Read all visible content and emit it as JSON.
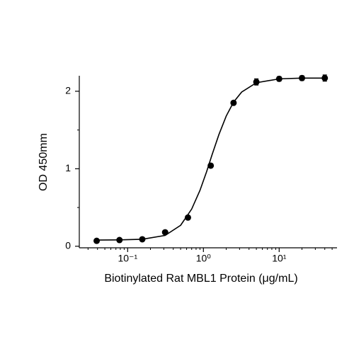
{
  "chart_data": {
    "type": "scatter",
    "xlabel": "Biotinylated Rat MBL1 Protein (μg/mL)",
    "ylabel": "OD 450mm",
    "xscale": "log",
    "xlim": [
      0.023,
      58
    ],
    "ylim": [
      -0.02,
      2.2
    ],
    "xticks": [
      {
        "value": 0.1,
        "label": "10⁻¹"
      },
      {
        "value": 1,
        "label": "10⁰"
      },
      {
        "value": 10,
        "label": "10¹"
      }
    ],
    "xminorticks": [
      0.03,
      0.04,
      0.05,
      0.06,
      0.07,
      0.08,
      0.09,
      0.2,
      0.3,
      0.4,
      0.5,
      0.6,
      0.7,
      0.8,
      0.9,
      2,
      3,
      4,
      5,
      6,
      7,
      8,
      9,
      20,
      30,
      40,
      50
    ],
    "yticks": [
      0,
      1,
      2
    ],
    "yminorticks": [
      0.5,
      1.5
    ],
    "color": "#000000",
    "points": {
      "x": [
        0.039,
        0.078,
        0.156,
        0.3125,
        0.625,
        1.25,
        2.5,
        5,
        10,
        20,
        40
      ],
      "values": [
        0.07,
        0.08,
        0.09,
        0.18,
        0.37,
        1.04,
        1.85,
        2.12,
        2.16,
        2.17,
        2.17
      ],
      "errors": [
        0,
        0,
        0,
        0,
        0,
        0,
        0,
        0.04,
        0.03,
        0.03,
        0.04
      ]
    },
    "curve": {
      "x": [
        0.039,
        0.078,
        0.156,
        0.3125,
        0.5,
        0.7,
        0.9,
        1.1,
        1.3,
        1.6,
        2,
        2.5,
        3.2,
        5,
        10,
        20,
        40
      ],
      "y": [
        0.08,
        0.082,
        0.09,
        0.14,
        0.27,
        0.48,
        0.72,
        0.96,
        1.18,
        1.44,
        1.68,
        1.86,
        1.99,
        2.11,
        2.16,
        2.17,
        2.17
      ]
    }
  }
}
